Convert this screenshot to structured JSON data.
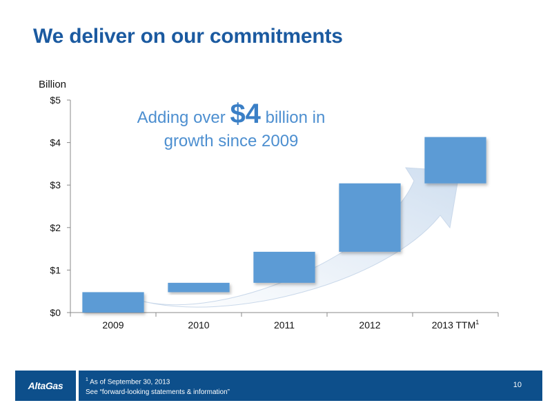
{
  "slide": {
    "title": "We deliver on our commitments",
    "page_number": "10"
  },
  "callout": {
    "prefix": "Adding over ",
    "amount": "$4",
    "suffix": " billion in",
    "line2": "growth since 2009"
  },
  "footer": {
    "logo": "AltaGas",
    "note_marker": "1",
    "note": " As of September 30, 2013",
    "disclaimer": "See “forward-looking statements & information”"
  },
  "colors": {
    "title": "#1b5aa0",
    "bar": "#5b9bd5",
    "arrow": "#dbe6f2",
    "footer": "#0d4f8b",
    "callout": "#4d8fd0"
  },
  "chart_data": {
    "type": "waterfall",
    "unit_label": "Billion",
    "categories": [
      "2009",
      "2010",
      "2011",
      "2012",
      "2013 TTM"
    ],
    "category_superscripts": [
      "",
      "",
      "",
      "",
      "1"
    ],
    "y_tick_labels": [
      "$0",
      "$1",
      "$2",
      "$3",
      "$4",
      "$5"
    ],
    "y_ticks": [
      0,
      1,
      2,
      3,
      4,
      5
    ],
    "ylim": [
      0,
      5
    ],
    "bars": [
      {
        "category": "2009",
        "start": 0.0,
        "end": 0.48
      },
      {
        "category": "2010",
        "start": 0.48,
        "end": 0.7
      },
      {
        "category": "2011",
        "start": 0.7,
        "end": 1.43
      },
      {
        "category": "2012",
        "start": 1.43,
        "end": 3.04
      },
      {
        "category": "2013 TTM",
        "start": 3.04,
        "end": 4.13
      }
    ],
    "grid": false,
    "legend": "none"
  }
}
